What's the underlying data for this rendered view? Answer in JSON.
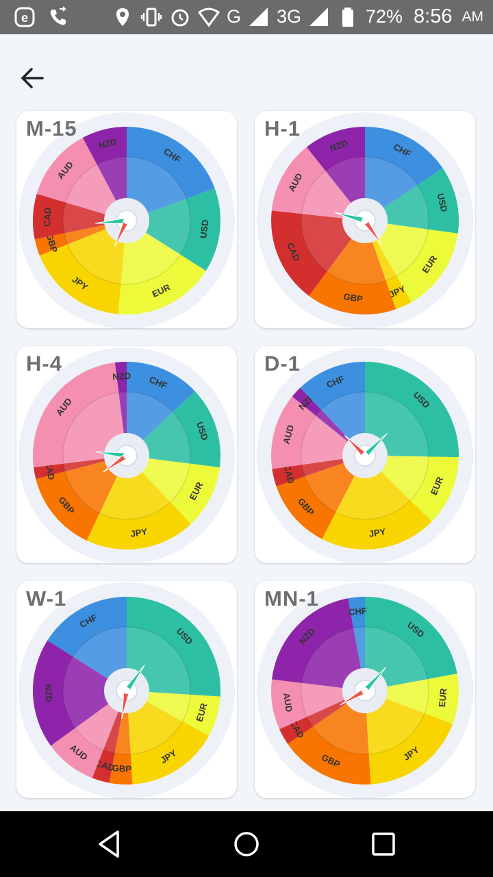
{
  "status_bar": {
    "battery": "72%",
    "network_type": "3G",
    "network_g": "G",
    "time": "8:56",
    "ampm": "AM",
    "icons": [
      "e-app-icon",
      "phone-call-icon",
      "location-icon",
      "vibrate-icon",
      "alarm-icon",
      "wifi-icon",
      "signal-icon",
      "battery-icon"
    ]
  },
  "app_bar": {
    "back_icon": "arrow-left-icon"
  },
  "colors": {
    "CHF": "#3d8fe0",
    "USD": "#2dbfa3",
    "EUR": "#ecfa3a",
    "JPY": "#f8d500",
    "GBP": "#f77500",
    "CAD": "#d32f2f",
    "AUD": "#f48fb1",
    "NZD": "#8e24aa",
    "hand_primary": "#26c6a0",
    "hand_secondary": "#ef5350"
  },
  "gauges": [
    {
      "label": "M-15",
      "segments": [
        {
          "currency": "CHF",
          "weight": 20
        },
        {
          "currency": "USD",
          "weight": 15
        },
        {
          "currency": "EUR",
          "weight": 18
        },
        {
          "currency": "JPY",
          "weight": 18
        },
        {
          "currency": "GBP",
          "weight": 3
        },
        {
          "currency": "CAD",
          "weight": 8
        },
        {
          "currency": "AUD",
          "weight": 13
        },
        {
          "currency": "NZD",
          "weight": 8
        }
      ],
      "hand_primary_deg": 265,
      "hand_secondary_deg": 205
    },
    {
      "label": "H-1",
      "segments": [
        {
          "currency": "CHF",
          "weight": 16
        },
        {
          "currency": "USD",
          "weight": 12
        },
        {
          "currency": "EUR",
          "weight": 15
        },
        {
          "currency": "JPY",
          "weight": 3
        },
        {
          "currency": "GBP",
          "weight": 16
        },
        {
          "currency": "CAD",
          "weight": 17
        },
        {
          "currency": "AUD",
          "weight": 13
        },
        {
          "currency": "NZD",
          "weight": 11
        }
      ],
      "hand_primary_deg": 285,
      "hand_secondary_deg": 145
    },
    {
      "label": "H-4",
      "segments": [
        {
          "currency": "CHF",
          "weight": 13
        },
        {
          "currency": "USD",
          "weight": 14
        },
        {
          "currency": "EUR",
          "weight": 11
        },
        {
          "currency": "JPY",
          "weight": 19
        },
        {
          "currency": "GBP",
          "weight": 14
        },
        {
          "currency": "CAD",
          "weight": 2
        },
        {
          "currency": "AUD",
          "weight": 25
        },
        {
          "currency": "NZD",
          "weight": 2
        }
      ],
      "hand_primary_deg": 277,
      "hand_secondary_deg": 235
    },
    {
      "label": "D-1",
      "segments": [
        {
          "currency": "USD",
          "weight": 25
        },
        {
          "currency": "EUR",
          "weight": 12
        },
        {
          "currency": "JPY",
          "weight": 20
        },
        {
          "currency": "GBP",
          "weight": 12
        },
        {
          "currency": "CAD",
          "weight": 3
        },
        {
          "currency": "AUD",
          "weight": 13
        },
        {
          "currency": "NZD",
          "weight": 2
        },
        {
          "currency": "CHF",
          "weight": 12
        }
      ],
      "hand_primary_deg": 45,
      "hand_secondary_deg": 315
    },
    {
      "label": "W-1",
      "segments": [
        {
          "currency": "USD",
          "weight": 26
        },
        {
          "currency": "EUR",
          "weight": 7
        },
        {
          "currency": "JPY",
          "weight": 16
        },
        {
          "currency": "GBP",
          "weight": 4
        },
        {
          "currency": "CAD",
          "weight": 3
        },
        {
          "currency": "AUD",
          "weight": 9
        },
        {
          "currency": "NZD",
          "weight": 19
        },
        {
          "currency": "CHF",
          "weight": 16
        }
      ],
      "hand_primary_deg": 35,
      "hand_secondary_deg": 190
    },
    {
      "label": "MN-1",
      "segments": [
        {
          "currency": "USD",
          "weight": 23
        },
        {
          "currency": "EUR",
          "weight": 9
        },
        {
          "currency": "JPY",
          "weight": 19
        },
        {
          "currency": "GBP",
          "weight": 17
        },
        {
          "currency": "CAD",
          "weight": 3
        },
        {
          "currency": "AUD",
          "weight": 9
        },
        {
          "currency": "NZD",
          "weight": 21
        },
        {
          "currency": "CHF",
          "weight": 3
        }
      ],
      "hand_primary_deg": 42,
      "hand_secondary_deg": 240
    }
  ],
  "nav_bar": {
    "back": "triangle-back-icon",
    "home": "circle-home-icon",
    "recents": "square-recents-icon"
  }
}
